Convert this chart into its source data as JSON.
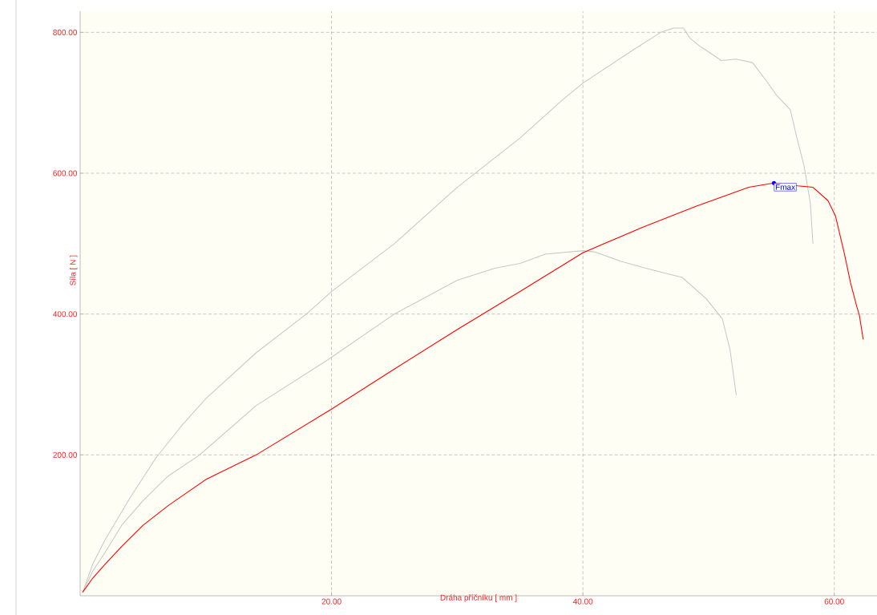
{
  "chart_data": {
    "type": "line",
    "xlabel": "Dráha příčníku [ mm ]",
    "ylabel": "Síla [ N ]",
    "xlim": [
      0,
      63.4
    ],
    "ylim": [
      0,
      830
    ],
    "xticks": [
      {
        "value": 20,
        "label": "20.00"
      },
      {
        "value": 40,
        "label": "40.00"
      },
      {
        "value": 60,
        "label": "60.00"
      }
    ],
    "yticks": [
      {
        "value": 200,
        "label": "200.00"
      },
      {
        "value": 400,
        "label": "400.00"
      },
      {
        "value": 600,
        "label": "600.00"
      },
      {
        "value": 800,
        "label": "800.00"
      }
    ],
    "grid": true,
    "marker": "none",
    "line_style": "solid",
    "series": [
      {
        "color": "#c8c8c8",
        "x": [
          0.2,
          1,
          2,
          3,
          4,
          6,
          8,
          10,
          14,
          18,
          20,
          25,
          30,
          35,
          38.3,
          40,
          44,
          46.2,
          47.2,
          48,
          48.5,
          49.4,
          50.2,
          51,
          52.2,
          53.5,
          54.6,
          55.4,
          56.5,
          57,
          57.6,
          58.1,
          58.3
        ],
        "values": [
          5,
          45,
          80,
          110,
          140,
          195,
          240,
          280,
          345,
          400,
          432,
          500,
          580,
          650,
          703,
          728,
          775,
          800,
          806,
          806,
          792,
          779,
          770,
          760,
          762,
          757,
          731,
          711,
          690,
          652,
          610,
          557,
          500
        ]
      },
      {
        "color": "#c8c8c8",
        "x": [
          0.2,
          1,
          2,
          3.3,
          5,
          7,
          9.5,
          14,
          19.7,
          25,
          30,
          33,
          35,
          37,
          40,
          41,
          43,
          45,
          47.9,
          49.8,
          51.1,
          51.7,
          52.2
        ],
        "values": [
          5,
          35,
          62,
          100,
          135,
          170,
          200,
          270,
          335,
          400,
          448,
          465,
          472,
          485,
          490,
          488,
          475,
          465,
          452,
          422,
          393,
          350,
          285
        ]
      },
      {
        "color": "#ff0000",
        "x": [
          0.2,
          1,
          2,
          3.3,
          5,
          7,
          10,
          14,
          20,
          25,
          30,
          35,
          40,
          44.7,
          49,
          53.2,
          55.2,
          57.1,
          58.3,
          59.5,
          60.1,
          60.8,
          61.3,
          61.8,
          62,
          62.3
        ],
        "values": [
          5,
          25,
          45,
          70,
          100,
          128,
          165,
          200,
          265,
          322,
          378,
          432,
          487,
          523,
          553,
          580,
          586,
          582,
          580,
          561,
          539,
          486,
          444,
          410,
          398,
          364
        ]
      }
    ],
    "annotations": [
      {
        "text": "Fmax",
        "x": 55.2,
        "y": 586
      }
    ]
  }
}
